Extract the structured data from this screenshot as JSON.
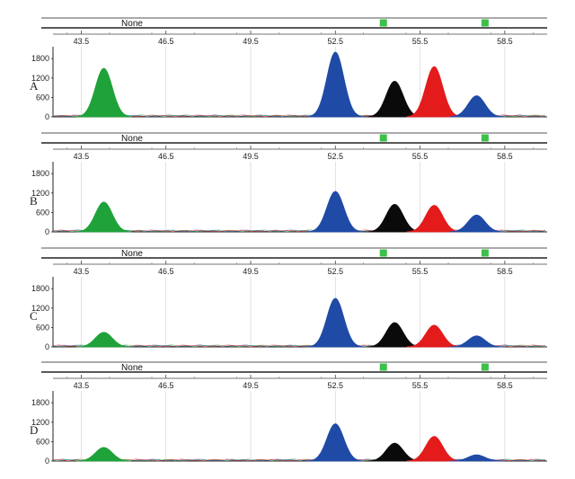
{
  "chart_data": {
    "type": "area",
    "description_of_x_axis": "",
    "x_ticks": [
      "43.5",
      "46.5",
      "49.5",
      "52.5",
      "55.5",
      "58.5"
    ],
    "y_ticks": [
      "0",
      "600",
      "1200",
      "1800"
    ],
    "xlim": [
      42.5,
      60.0
    ],
    "ylim": [
      0,
      2000
    ],
    "bin_label": "None",
    "bin_markers_x": [
      54.2,
      57.8
    ],
    "colors": {
      "green": "#1fa23a",
      "blue": "#1f4aa6",
      "black": "#0a0a0a",
      "red": "#e41b1b"
    },
    "panels": [
      {
        "label": "A",
        "peaks": [
          {
            "color": "green",
            "x": 44.3,
            "height": 1500
          },
          {
            "color": "blue",
            "x": 52.5,
            "height": 2000
          },
          {
            "color": "black",
            "x": 54.6,
            "height": 1100
          },
          {
            "color": "red",
            "x": 56.0,
            "height": 1550
          },
          {
            "color": "blue",
            "x": 57.5,
            "height": 650
          }
        ]
      },
      {
        "label": "B",
        "peaks": [
          {
            "color": "green",
            "x": 44.3,
            "height": 920
          },
          {
            "color": "blue",
            "x": 52.5,
            "height": 1250
          },
          {
            "color": "black",
            "x": 54.6,
            "height": 850
          },
          {
            "color": "red",
            "x": 56.0,
            "height": 820
          },
          {
            "color": "blue",
            "x": 57.5,
            "height": 520
          }
        ]
      },
      {
        "label": "C",
        "peaks": [
          {
            "color": "green",
            "x": 44.3,
            "height": 450
          },
          {
            "color": "blue",
            "x": 52.5,
            "height": 1500
          },
          {
            "color": "black",
            "x": 54.6,
            "height": 750
          },
          {
            "color": "red",
            "x": 56.0,
            "height": 670
          },
          {
            "color": "blue",
            "x": 57.5,
            "height": 340
          }
        ]
      },
      {
        "label": "D",
        "peaks": [
          {
            "color": "green",
            "x": 44.3,
            "height": 420
          },
          {
            "color": "blue",
            "x": 52.5,
            "height": 1150
          },
          {
            "color": "black",
            "x": 54.6,
            "height": 550
          },
          {
            "color": "red",
            "x": 56.0,
            "height": 760
          },
          {
            "color": "blue",
            "x": 57.5,
            "height": 190
          }
        ]
      }
    ]
  }
}
